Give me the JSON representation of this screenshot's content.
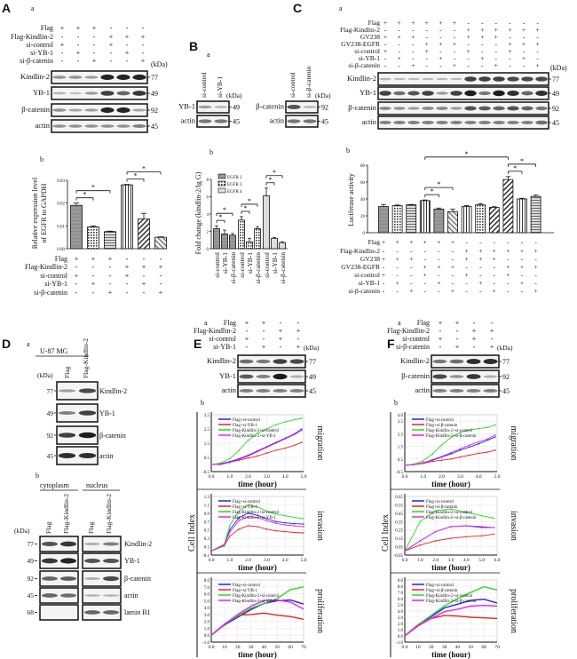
{
  "kda_unit": "(kDa)",
  "star": "*",
  "A": {
    "label": "A",
    "sub_a": "a",
    "sub_b": "b",
    "conditions": {
      "labels": [
        "Flag",
        "Flag-Kindlin-2",
        "si-control",
        "si-YB-1",
        "si-β-catenin"
      ],
      "signs": [
        "+++---",
        "---+++",
        "+--+--",
        "-+--+-",
        "--+--+"
      ]
    },
    "blots": [
      {
        "name": "Kindlin-2",
        "kda": "77",
        "bands": [
          0.35,
          0.35,
          0.3,
          0.95,
          0.95,
          0.95
        ]
      },
      {
        "name": "YB-1",
        "kda": "49",
        "bands": [
          0.15,
          0.1,
          0.3,
          0.8,
          0.6,
          0.85
        ]
      },
      {
        "name": "β-catenin",
        "kda": "92",
        "bands": [
          0.35,
          0.25,
          0.3,
          0.95,
          0.95,
          0.25
        ]
      },
      {
        "name": "actin",
        "kda": "45",
        "bands": [
          0.35,
          0.35,
          0.35,
          0.35,
          0.35,
          0.45
        ]
      }
    ],
    "chart": {
      "ylabel_1": "Relative expression level",
      "ylabel_2": "of EGFR to GAPDH",
      "ylim": [
        0,
        0.03
      ],
      "yticks": [
        "0.00",
        "0.01",
        "0.02",
        "0.03"
      ],
      "values": [
        0.019,
        0.0095,
        0.0075,
        0.028,
        0.013,
        0.005
      ],
      "errors": [
        0.001,
        0.0005,
        0.0002,
        0.0002,
        0.0025,
        0.0002
      ],
      "sig": [
        [
          0,
          1
        ],
        [
          0,
          2
        ],
        [
          3,
          4
        ],
        [
          3,
          5
        ]
      ]
    }
  },
  "B": {
    "label": "B",
    "sub_a": "a",
    "sub_b": "b",
    "blot1": {
      "lanes": [
        "si-control",
        "si-YB-1"
      ],
      "blots": [
        {
          "name": "YB-1",
          "kda": "49",
          "bands": [
            0.3,
            0.15
          ]
        },
        {
          "name": "actin",
          "kda": "45",
          "bands": [
            0.5,
            0.5
          ]
        }
      ]
    },
    "blot2": {
      "lanes": [
        "si-control",
        "si-β-catenin"
      ],
      "blots": [
        {
          "name": "β-catenin",
          "kda": "92",
          "bands": [
            0.7,
            0.15
          ]
        },
        {
          "name": "actin",
          "kda": "45",
          "bands": [
            0.5,
            0.5
          ]
        }
      ]
    },
    "chart": {
      "ylabel": "Fold change (kindlin-2/Ig G)",
      "ylim": [
        0,
        8
      ],
      "yticks": [
        "0",
        "2",
        "4",
        "6",
        "8"
      ],
      "legend": [
        "EGFR 2",
        "EGFR 3",
        "EGFR 4"
      ],
      "groups": [
        {
          "values": [
            2.3,
            1.7,
            1.55
          ],
          "errors": [
            0.35,
            0.45,
            0.2
          ]
        },
        {
          "values": [
            3.3,
            0.8,
            2.3
          ],
          "errors": [
            0.4,
            0.4,
            0.25
          ]
        },
        {
          "values": [
            6.1,
            1.2,
            0.7
          ],
          "errors": [
            0.9,
            0.1,
            0.1
          ]
        }
      ],
      "xlabels": [
        "si-control",
        "si-YB-1",
        "si-β-catenin",
        "si-control",
        "si-YB-1",
        "si-β-catenin",
        "si-control",
        "si-YB-1",
        "si-β-catenin"
      ],
      "sig": [
        [
          0,
          1
        ],
        [
          0,
          2
        ],
        [
          3,
          4
        ],
        [
          3,
          5
        ],
        [
          6,
          7
        ],
        [
          6,
          8
        ]
      ]
    }
  },
  "C": {
    "label": "C",
    "sub_a": "a",
    "sub_b": "b",
    "conditions": {
      "labels": [
        "Flag",
        "Flag-Kindlin-2",
        "GV238",
        "GV238-EGFR",
        "si-control",
        "si-YB-1",
        "si-β-catenin"
      ],
      "signs": [
        "++++++------",
        "------++++++",
        "+++---+++---",
        "---+++---+++",
        "+--+--+--+--",
        "-+--+--+--+-",
        "--+--+--+--+"
      ]
    },
    "blots": [
      {
        "name": "Kindlin-2",
        "kda": "77",
        "bands": [
          0.15,
          0.12,
          0.12,
          0.12,
          0.12,
          0.12,
          0.8,
          0.8,
          0.8,
          0.75,
          0.75,
          0.75
        ]
      },
      {
        "name": "YB-1",
        "kda": "49",
        "bands": [
          0.8,
          0.55,
          0.7,
          0.8,
          0.3,
          0.8,
          1.0,
          0.5,
          1.0,
          0.9,
          0.6,
          0.9
        ]
      },
      {
        "name": "β-catenin",
        "kda": "92",
        "bands": [
          0.4,
          0.35,
          0.3,
          0.4,
          0.4,
          0.3,
          0.7,
          0.65,
          0.6,
          0.7,
          0.6,
          0.5
        ]
      },
      {
        "name": "actin",
        "kda": "45",
        "bands": [
          0.45,
          0.45,
          0.45,
          0.45,
          0.45,
          0.45,
          0.45,
          0.45,
          0.45,
          0.45,
          0.45,
          0.55
        ]
      }
    ],
    "chart": {
      "ylabel": "Luciferase activity",
      "ylim": [
        0,
        80
      ],
      "yticks": [
        "0",
        "20",
        "40",
        "60",
        "80"
      ],
      "values": [
        31,
        32,
        33,
        38,
        28,
        25,
        31,
        33,
        30,
        63,
        40,
        43
      ],
      "errors": [
        2.5,
        0.8,
        0.5,
        0.8,
        1.2,
        3,
        1.2,
        1.5,
        0.8,
        3.5,
        0.8,
        1.5
      ],
      "sig": [
        [
          3,
          4
        ],
        [
          3,
          5
        ],
        [
          3,
          9
        ],
        [
          9,
          10
        ],
        [
          9,
          11
        ]
      ]
    }
  },
  "D": {
    "label": "D",
    "sub_a": "a",
    "sub_b": "b",
    "cell_line": "U-87 MG",
    "lanes": [
      "Flag",
      "Flag-Kindlin-2"
    ],
    "blots": [
      {
        "name": "Kindlin-2",
        "kda": "77",
        "bands": [
          0.3,
          0.75
        ]
      },
      {
        "name": "YB-1",
        "kda": "49",
        "bands": [
          0.45,
          0.8
        ]
      },
      {
        "name": "β-catenin",
        "kda": "92",
        "bands": [
          0.8,
          1.0
        ]
      },
      {
        "name": "actin",
        "kda": "45",
        "bands": [
          0.9,
          0.9
        ]
      }
    ],
    "fraction_labels": [
      "cytoplasm",
      "nucleus"
    ],
    "fraction_blots": [
      {
        "name": "Kindlin-2",
        "kda": "77",
        "bands": [
          0.7,
          0.85,
          0.2,
          0.45
        ]
      },
      {
        "name": "YB-1",
        "kda": "49",
        "bands": [
          0.85,
          0.95,
          0.7,
          0.7
        ]
      },
      {
        "name": "β-catenin",
        "kda": "92",
        "bands": [
          0.6,
          0.65,
          0.2,
          0.75
        ]
      },
      {
        "name": "actin",
        "kda": "45",
        "bands": [
          0.6,
          0.55,
          0.15,
          0.15
        ]
      },
      {
        "name": "lamin B1",
        "kda": "68",
        "bands": [
          0,
          0,
          0.6,
          0.6
        ]
      }
    ]
  },
  "E": {
    "label": "E",
    "sub_a": "a",
    "sub_b": "b",
    "conditions": {
      "labels": [
        "Flag",
        "Flag-Kindlin-2",
        "si-control",
        "si-YB-1"
      ],
      "signs": [
        "++--",
        "--++",
        "+-+-",
        "-+-+"
      ]
    },
    "blots": [
      {
        "name": "Kindlin-2",
        "kda": "77",
        "bands": [
          0.55,
          0.5,
          0.8,
          0.75
        ]
      },
      {
        "name": "YB-1",
        "kda": "49",
        "bands": [
          0.65,
          0.45,
          1.0,
          0.2
        ]
      },
      {
        "name": "actin",
        "kda": "45",
        "bands": [
          0.45,
          0.45,
          0.45,
          0.45
        ]
      }
    ],
    "ylabel": "Cell Index",
    "legend": [
      "Flag+si-control",
      "Flag+si-YB-1",
      "Flag-Kindlin-2+si-control",
      "Flag-Kindlin-2+si-YB-1"
    ],
    "charts": [
      {
        "side_label": "migration",
        "xlabel": "time (hour)",
        "xlim": [
          0,
          5
        ],
        "ylim": [
          -0.5,
          3.5
        ],
        "xticks": [
          "0.0",
          "1.0",
          "2.0",
          "3.0",
          "4.0",
          "5.0"
        ],
        "yticks": [
          "-0.5",
          "0.5",
          "1.5",
          "2.5",
          "3.5"
        ],
        "x": [
          0,
          0.5,
          1,
          1.5,
          2,
          2.5,
          3,
          3.5,
          4,
          4.5,
          4.9
        ],
        "series": [
          [
            0,
            0.05,
            0.2,
            0.4,
            0.65,
            0.95,
            1.25,
            1.55,
            1.85,
            2.15,
            2.5
          ],
          [
            0,
            0,
            0.15,
            0.3,
            0.45,
            0.6,
            0.8,
            1,
            1.15,
            1.35,
            1.55
          ],
          [
            0,
            0.1,
            0.4,
            1.0,
            1.7,
            2.2,
            2.5,
            2.8,
            3.0,
            3.15,
            3.25
          ],
          [
            0,
            0,
            0.15,
            0.35,
            0.6,
            0.9,
            1.2,
            1.5,
            1.8,
            2.1,
            2.4
          ]
        ]
      },
      {
        "side_label": "invasion",
        "xlabel": "time (hour)",
        "xlim": [
          0,
          5
        ],
        "ylim": [
          -0.1,
          1.3
        ],
        "xticks": [
          "0.0",
          "1.0",
          "2.0",
          "3.0",
          "4.0",
          "5.0"
        ],
        "yticks": [
          "-0.1",
          "0.1",
          "0.3",
          "0.5",
          "0.7",
          "0.9",
          "1.1",
          "1.3"
        ],
        "x": [
          0,
          0.7,
          1,
          1.5,
          2,
          2.5,
          3,
          3.5,
          4,
          4.5,
          5
        ],
        "series": [
          [
            0,
            0.15,
            0.5,
            0.8,
            0.9,
            0.85,
            0.77,
            0.7,
            0.67,
            0.65,
            0.64
          ],
          [
            0,
            0.12,
            0.35,
            0.52,
            0.6,
            0.58,
            0.52,
            0.48,
            0.46,
            0.44,
            0.43
          ],
          [
            0,
            0.16,
            0.6,
            0.95,
            1.1,
            1.05,
            0.95,
            0.88,
            0.84,
            0.8,
            0.77
          ],
          [
            0,
            0.14,
            0.45,
            0.72,
            0.82,
            0.8,
            0.72,
            0.66,
            0.62,
            0.6,
            0.58
          ]
        ]
      },
      {
        "side_label": "proliferation",
        "xlabel": "time (hour)",
        "xlim": [
          0,
          70
        ],
        "ylim": [
          -1,
          8
        ],
        "xticks": [
          "0.0",
          "10",
          "20",
          "30",
          "40",
          "50",
          "60",
          "70"
        ],
        "yticks": [
          "-1.0",
          "0.0",
          "1.0",
          "2.0",
          "3.0",
          "4.0",
          "5.0",
          "6.0",
          "7.0",
          "8.0"
        ],
        "x": [
          0,
          10,
          20,
          30,
          40,
          50,
          60,
          70
        ],
        "series": [
          [
            0,
            1.5,
            2.6,
            3.7,
            4.6,
            5,
            5.1,
            4.5
          ],
          [
            0,
            1.6,
            2.9,
            3,
            3.2,
            2.9,
            2.7,
            2.3
          ],
          [
            0,
            1.6,
            2.8,
            3.9,
            4.6,
            5.3,
            6.6,
            7
          ],
          [
            0,
            1.6,
            3,
            4.2,
            5,
            5.1,
            4.8,
            3.8
          ]
        ]
      }
    ]
  },
  "F": {
    "label": "F",
    "sub_a": "a",
    "sub_b": "b",
    "conditions": {
      "labels": [
        "Flag",
        "Flag-Kindlin-2",
        "si-control",
        "si-β-catenin"
      ],
      "signs": [
        "++--",
        "--++",
        "+-+-",
        "-+-+"
      ]
    },
    "blots": [
      {
        "name": "Kindlin-2",
        "kda": "77",
        "bands": [
          0.5,
          0.55,
          0.9,
          0.9
        ]
      },
      {
        "name": "β-catenin",
        "kda": "92",
        "bands": [
          0.75,
          0.35,
          0.85,
          0.2
        ]
      },
      {
        "name": "actin",
        "kda": "45",
        "bands": [
          0.45,
          0.45,
          0.45,
          0.45
        ]
      }
    ],
    "ylabel": "Cell Index",
    "legend": [
      "Flag+si-control",
      "Flag+si-β-catenin",
      "Flag-Kindlin-2+si-control",
      "Flag-Kindlin-2+si-β-catenin"
    ],
    "charts": [
      {
        "side_label": "migration",
        "xlabel": "time (hour)",
        "xlim": [
          0,
          5
        ],
        "ylim": [
          -0.5,
          4.0
        ],
        "xticks": [
          "0.0",
          "1.0",
          "2.0",
          "3.0",
          "4.0",
          "5.0"
        ],
        "yticks": [
          "-0.5",
          "0.5",
          "1.5",
          "2.5",
          "3.5",
          "4.0"
        ],
        "x": [
          0,
          0.5,
          1,
          1.5,
          2,
          2.5,
          3,
          3.5,
          4,
          4.5,
          4.9
        ],
        "series": [
          [
            0,
            0.05,
            0.2,
            0.4,
            0.65,
            0.9,
            1.2,
            1.45,
            1.7,
            2.0,
            2.25
          ],
          [
            0,
            0.05,
            0.15,
            0.3,
            0.4,
            0.5,
            0.65,
            0.8,
            0.95,
            1.05,
            1.2
          ],
          [
            0,
            0.1,
            0.35,
            0.9,
            1.6,
            2.2,
            2.6,
            2.8,
            2.9,
            3.0,
            3.2
          ],
          [
            0,
            0.05,
            0.2,
            0.45,
            0.7,
            1.0,
            1.3,
            1.6,
            1.85,
            2.1,
            2.4
          ]
        ]
      },
      {
        "side_label": "invasion",
        "xlabel": "time (hour)",
        "xlim": [
          0,
          6
        ],
        "ylim": [
          -0.05,
          0.65
        ],
        "xticks": [
          "0.0",
          "1.0",
          "2.0",
          "3.0",
          "4.0",
          "5.0",
          "6.0"
        ],
        "yticks": [
          "-0.05",
          "0.05",
          "0.15",
          "0.25",
          "0.35",
          "0.45",
          "0.55",
          "0.65"
        ],
        "x": [
          0,
          1,
          2,
          3,
          4,
          5,
          5.8
        ],
        "series": [
          [
            0,
            0.12,
            0.23,
            0.29,
            0.3,
            0.28,
            0.28
          ],
          [
            0,
            0.07,
            0.12,
            0.15,
            0.17,
            0.18,
            0.2
          ],
          [
            0,
            0.35,
            0.48,
            0.5,
            0.46,
            0.42,
            0.39
          ],
          [
            0,
            0.12,
            0.23,
            0.29,
            0.3,
            0.29,
            0.28
          ]
        ]
      },
      {
        "side_label": "proliferation",
        "xlabel": "time (hour)",
        "xlim": [
          0,
          70
        ],
        "ylim": [
          -1,
          9
        ],
        "xticks": [
          "0.0",
          "10",
          "20",
          "30",
          "40",
          "50",
          "60",
          "70"
        ],
        "yticks": [
          "-1.0",
          "0.0",
          "1.0",
          "2.0",
          "3.0",
          "4.0",
          "5.0",
          "6.0",
          "7.0",
          "8.0",
          "9.0"
        ],
        "x": [
          0,
          10,
          20,
          30,
          40,
          50,
          60,
          70
        ],
        "series": [
          [
            0,
            1.8,
            3.1,
            4.5,
            5.1,
            5.7,
            5.9,
            5.3
          ],
          [
            0,
            1.6,
            2.8,
            3.3,
            3.2,
            3.0,
            2.9,
            2.8
          ],
          [
            0,
            1.8,
            3.3,
            4.8,
            6,
            7,
            7.9,
            7.4
          ],
          [
            0,
            1.7,
            2.8,
            3.9,
            4.3,
            4.8,
            4.9,
            4.8
          ]
        ]
      }
    ]
  },
  "series_colors": [
    "#2222ee",
    "#ee2222",
    "#22dd22",
    "#ee22ee"
  ]
}
